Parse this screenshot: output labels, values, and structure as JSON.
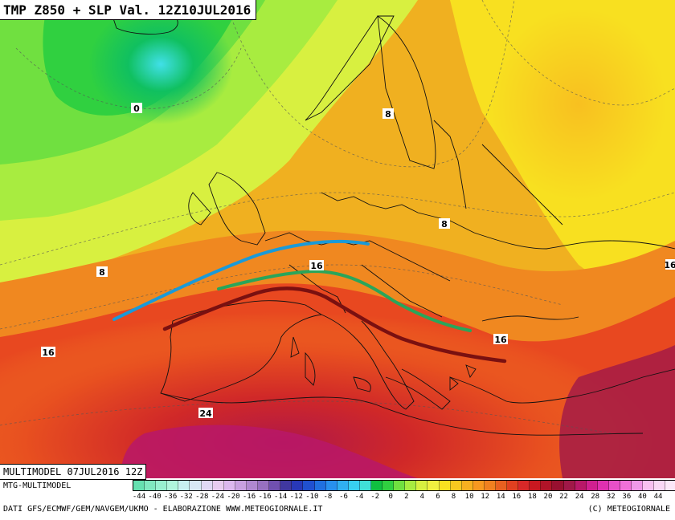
{
  "map_title": "TMP Z850 + SLP Val. 12Z10JUL2016",
  "contour_labels": [
    "0",
    "8",
    "8",
    "8",
    "16",
    "16",
    "16",
    "16",
    "24"
  ],
  "annotations": {
    "lines": [
      {
        "name": "blue-front-line",
        "color": "#1a9ad8"
      },
      {
        "name": "green-front-line",
        "color": "#2aa55a"
      },
      {
        "name": "darkred-front-line",
        "color": "#7a1010"
      }
    ]
  },
  "footer": {
    "run_label": "MULTIMODEL 07JUL2016 12Z",
    "model_label": "MTG-MULTIMODEL",
    "credits": "DATI GFS/ECMWF/GEM/NAVGEM/UKMO - ELABORAZIONE WWW.METEOGIORNALE.IT",
    "copyright": "(C) METEOGIORNALE"
  },
  "legend": {
    "unit_hint": "temperature 850 hPa",
    "tick_labels": [
      "-44",
      "-40",
      "-36",
      "-32",
      "-28",
      "-24",
      "-20",
      "-16",
      "-16",
      "-14",
      "-12",
      "-10",
      "-8",
      "-6",
      "-4",
      "-2",
      "0",
      "2",
      "4",
      "6",
      "8",
      "10",
      "12",
      "14",
      "16",
      "18",
      "20",
      "22",
      "24",
      "28",
      "32",
      "36",
      "40",
      "44"
    ],
    "colors": [
      "#66e0b0",
      "#80e8c0",
      "#98f0d0",
      "#b0f5dd",
      "#c8f0f0",
      "#d8e8f5",
      "#e0d8f5",
      "#e8ccf0",
      "#dcb8ee",
      "#c8a0e0",
      "#b088d0",
      "#9870c0",
      "#7050b0",
      "#4038a0",
      "#2838b8",
      "#2050d0",
      "#2070e0",
      "#2890ee",
      "#30b0f0",
      "#38d0f0",
      "#40e0d8",
      "#10c040",
      "#30d040",
      "#70e040",
      "#a8ec40",
      "#d8f040",
      "#f0f040",
      "#f8e020",
      "#f8c820",
      "#f8b020",
      "#f89820",
      "#f08020",
      "#e86020",
      "#e04020",
      "#d82828",
      "#c81820",
      "#b01428",
      "#981030",
      "#a01848",
      "#b81868",
      "#d02090",
      "#e030b0",
      "#e850c8",
      "#f070d8",
      "#f098e8",
      "#f8c0f0",
      "#fad8f5",
      "#fce8f8"
    ]
  }
}
